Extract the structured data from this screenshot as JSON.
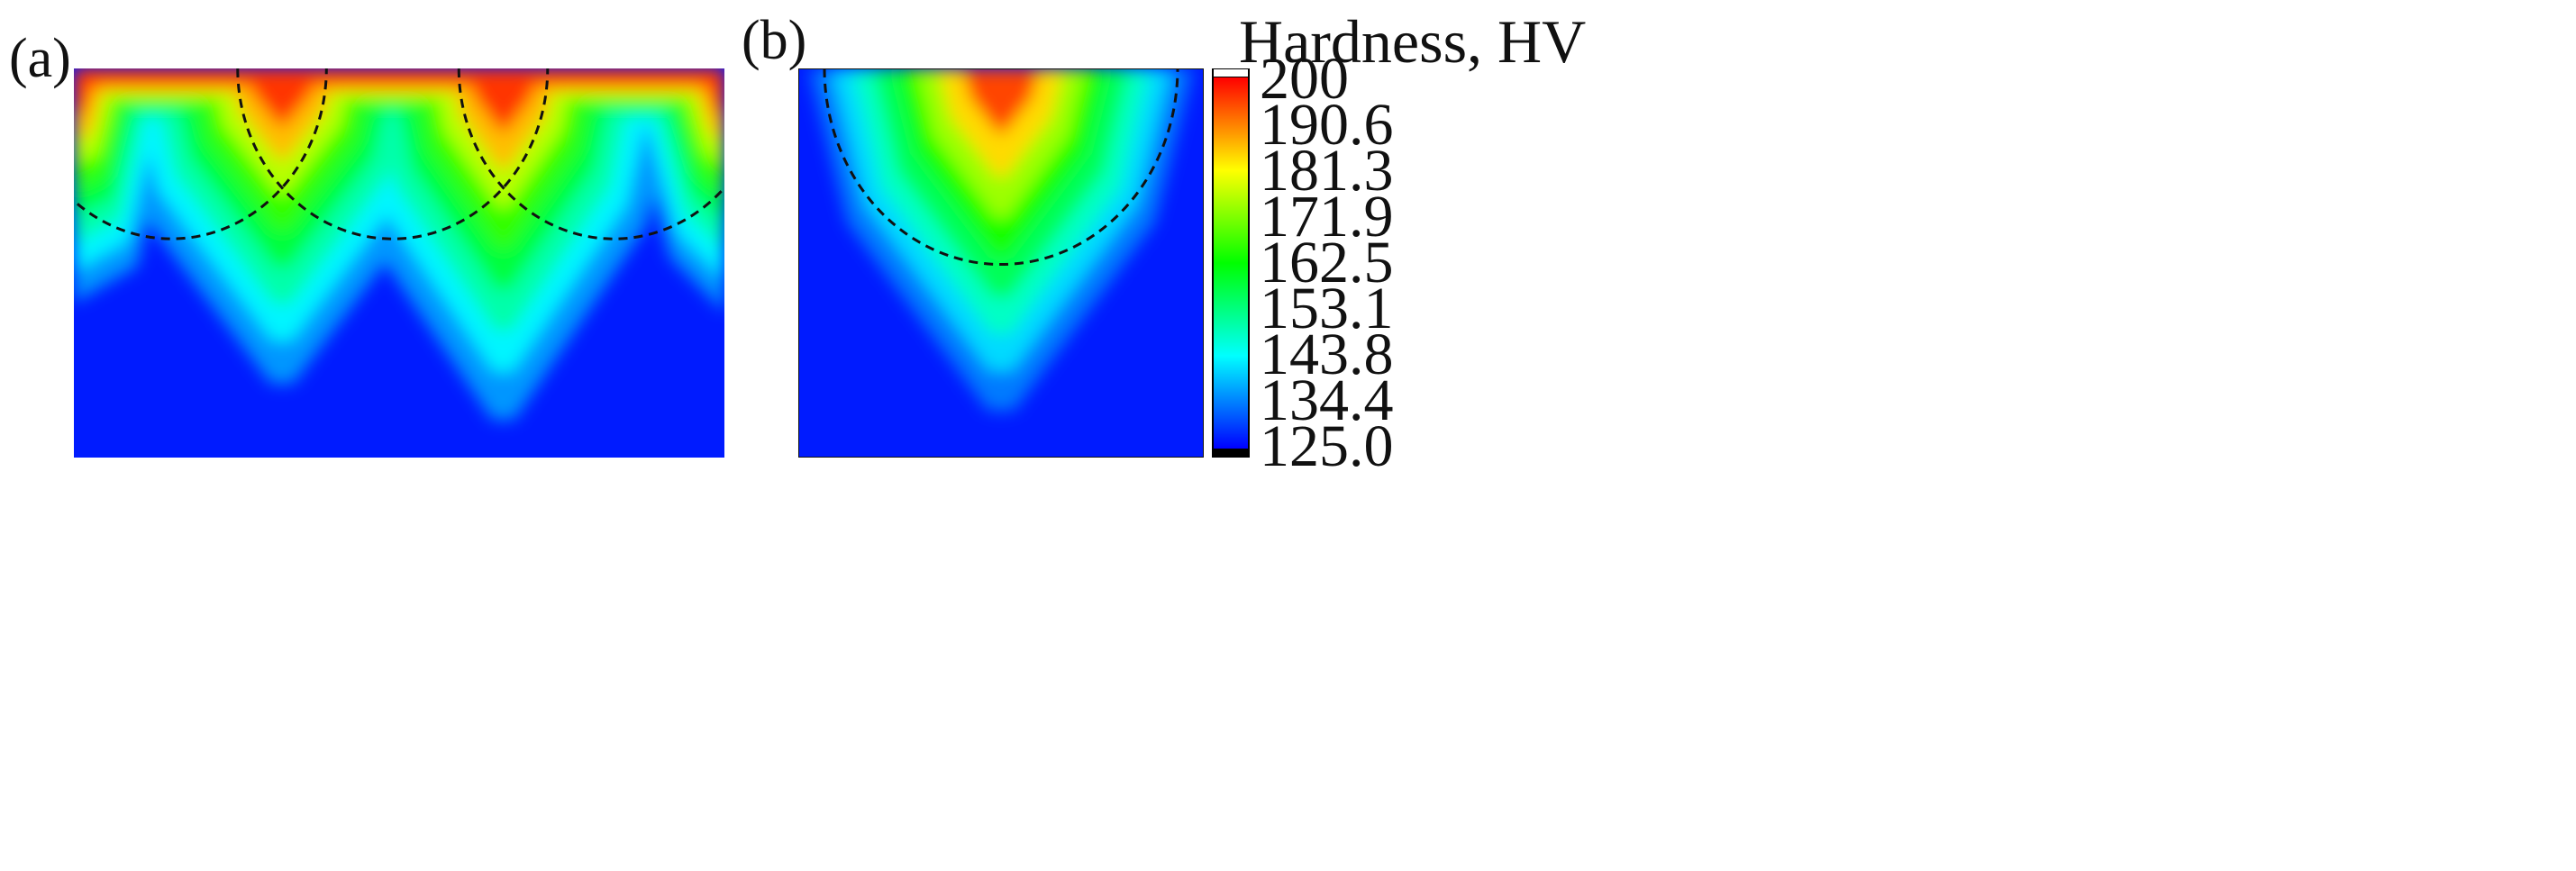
{
  "panels": [
    {
      "label": "(a)"
    },
    {
      "label": "(b)"
    }
  ],
  "colorbar": {
    "title": "Hardness, HV",
    "min": 125.0,
    "max": 200,
    "ticks": [
      "200",
      "190.6",
      "181.3",
      "171.9",
      "162.5",
      "153.1",
      "143.8",
      "134.4",
      "125.0"
    ],
    "over_color": "#ffffff",
    "under_color": "#000000",
    "colormap": [
      "#0000ff",
      "#00ffff",
      "#00ff00",
      "#ffff00",
      "#ff0000"
    ]
  },
  "chart_data": [
    {
      "type": "heatmap",
      "panel": "(a)",
      "quantity": "Hardness, HV",
      "value_range": [
        125.0,
        200
      ],
      "peaks": [
        {
          "x": 0.32,
          "peak_value": 200,
          "description_depth_of_green": 0.55
        },
        {
          "x": 0.66,
          "peak_value": 200,
          "description_depth_of_green": 0.62
        }
      ],
      "edge_values": [
        196,
        193
      ],
      "background_value": 127,
      "fusion_boundaries": [
        {
          "center_x": 0.15
        },
        {
          "center_x": 0.49
        },
        {
          "center_x": 0.83
        }
      ]
    },
    {
      "type": "heatmap",
      "panel": "(b)",
      "quantity": "Hardness, HV",
      "value_range": [
        125.0,
        200
      ],
      "peaks": [
        {
          "x": 0.5,
          "peak_value": 200
        }
      ],
      "background_value": 127,
      "fusion_boundaries": [
        {
          "center_x": 0.5
        }
      ]
    }
  ]
}
